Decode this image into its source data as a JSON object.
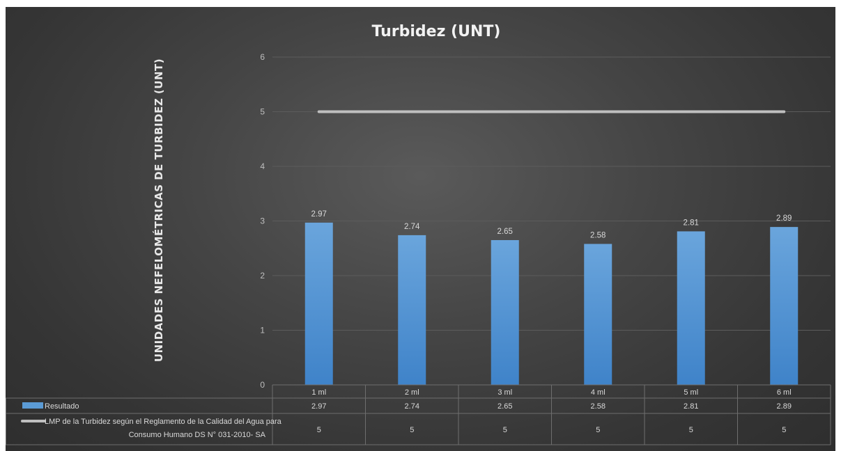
{
  "chart_data": {
    "type": "bar",
    "title": "Turbidez (UNT)",
    "ylabel": "UNIDADES NEFELOMÉTRICAS DE TURBIDEZ (UNT)",
    "xlabel": "",
    "ylim": [
      0,
      6
    ],
    "yticks": [
      "0",
      "1",
      "2",
      "3",
      "4",
      "5",
      "6"
    ],
    "grid": true,
    "categories": [
      "1 ml",
      "2 ml",
      "3 ml",
      "4 ml",
      "5 ml",
      "6 ml"
    ],
    "series": [
      {
        "name": "Resultado",
        "type": "bar",
        "values": [
          2.97,
          2.74,
          2.65,
          2.58,
          2.81,
          2.89
        ],
        "labels": [
          "2.97",
          "2.74",
          "2.65",
          "2.58",
          "2.81",
          "2.89"
        ],
        "table_values": [
          "2.97",
          "2.74",
          "2.65",
          "2.58",
          "2.81",
          "2.89"
        ],
        "color": "#5b9bd5"
      },
      {
        "name_line1": "LMP de la Turbidez  según el Reglamento de la Calidad del Agua para",
        "name_line2": "Consumo Humano DS N° 031-2010- SA",
        "type": "line",
        "values": [
          5,
          5,
          5,
          5,
          5,
          5
        ],
        "table_values": [
          "5",
          "5",
          "5",
          "5",
          "5",
          "5"
        ],
        "color": "#bfbfbf"
      }
    ],
    "legend": "data-table",
    "colors": {
      "background": "#3c3c3c",
      "bar": "#5b9bd5",
      "line": "#bfbfbf"
    }
  }
}
